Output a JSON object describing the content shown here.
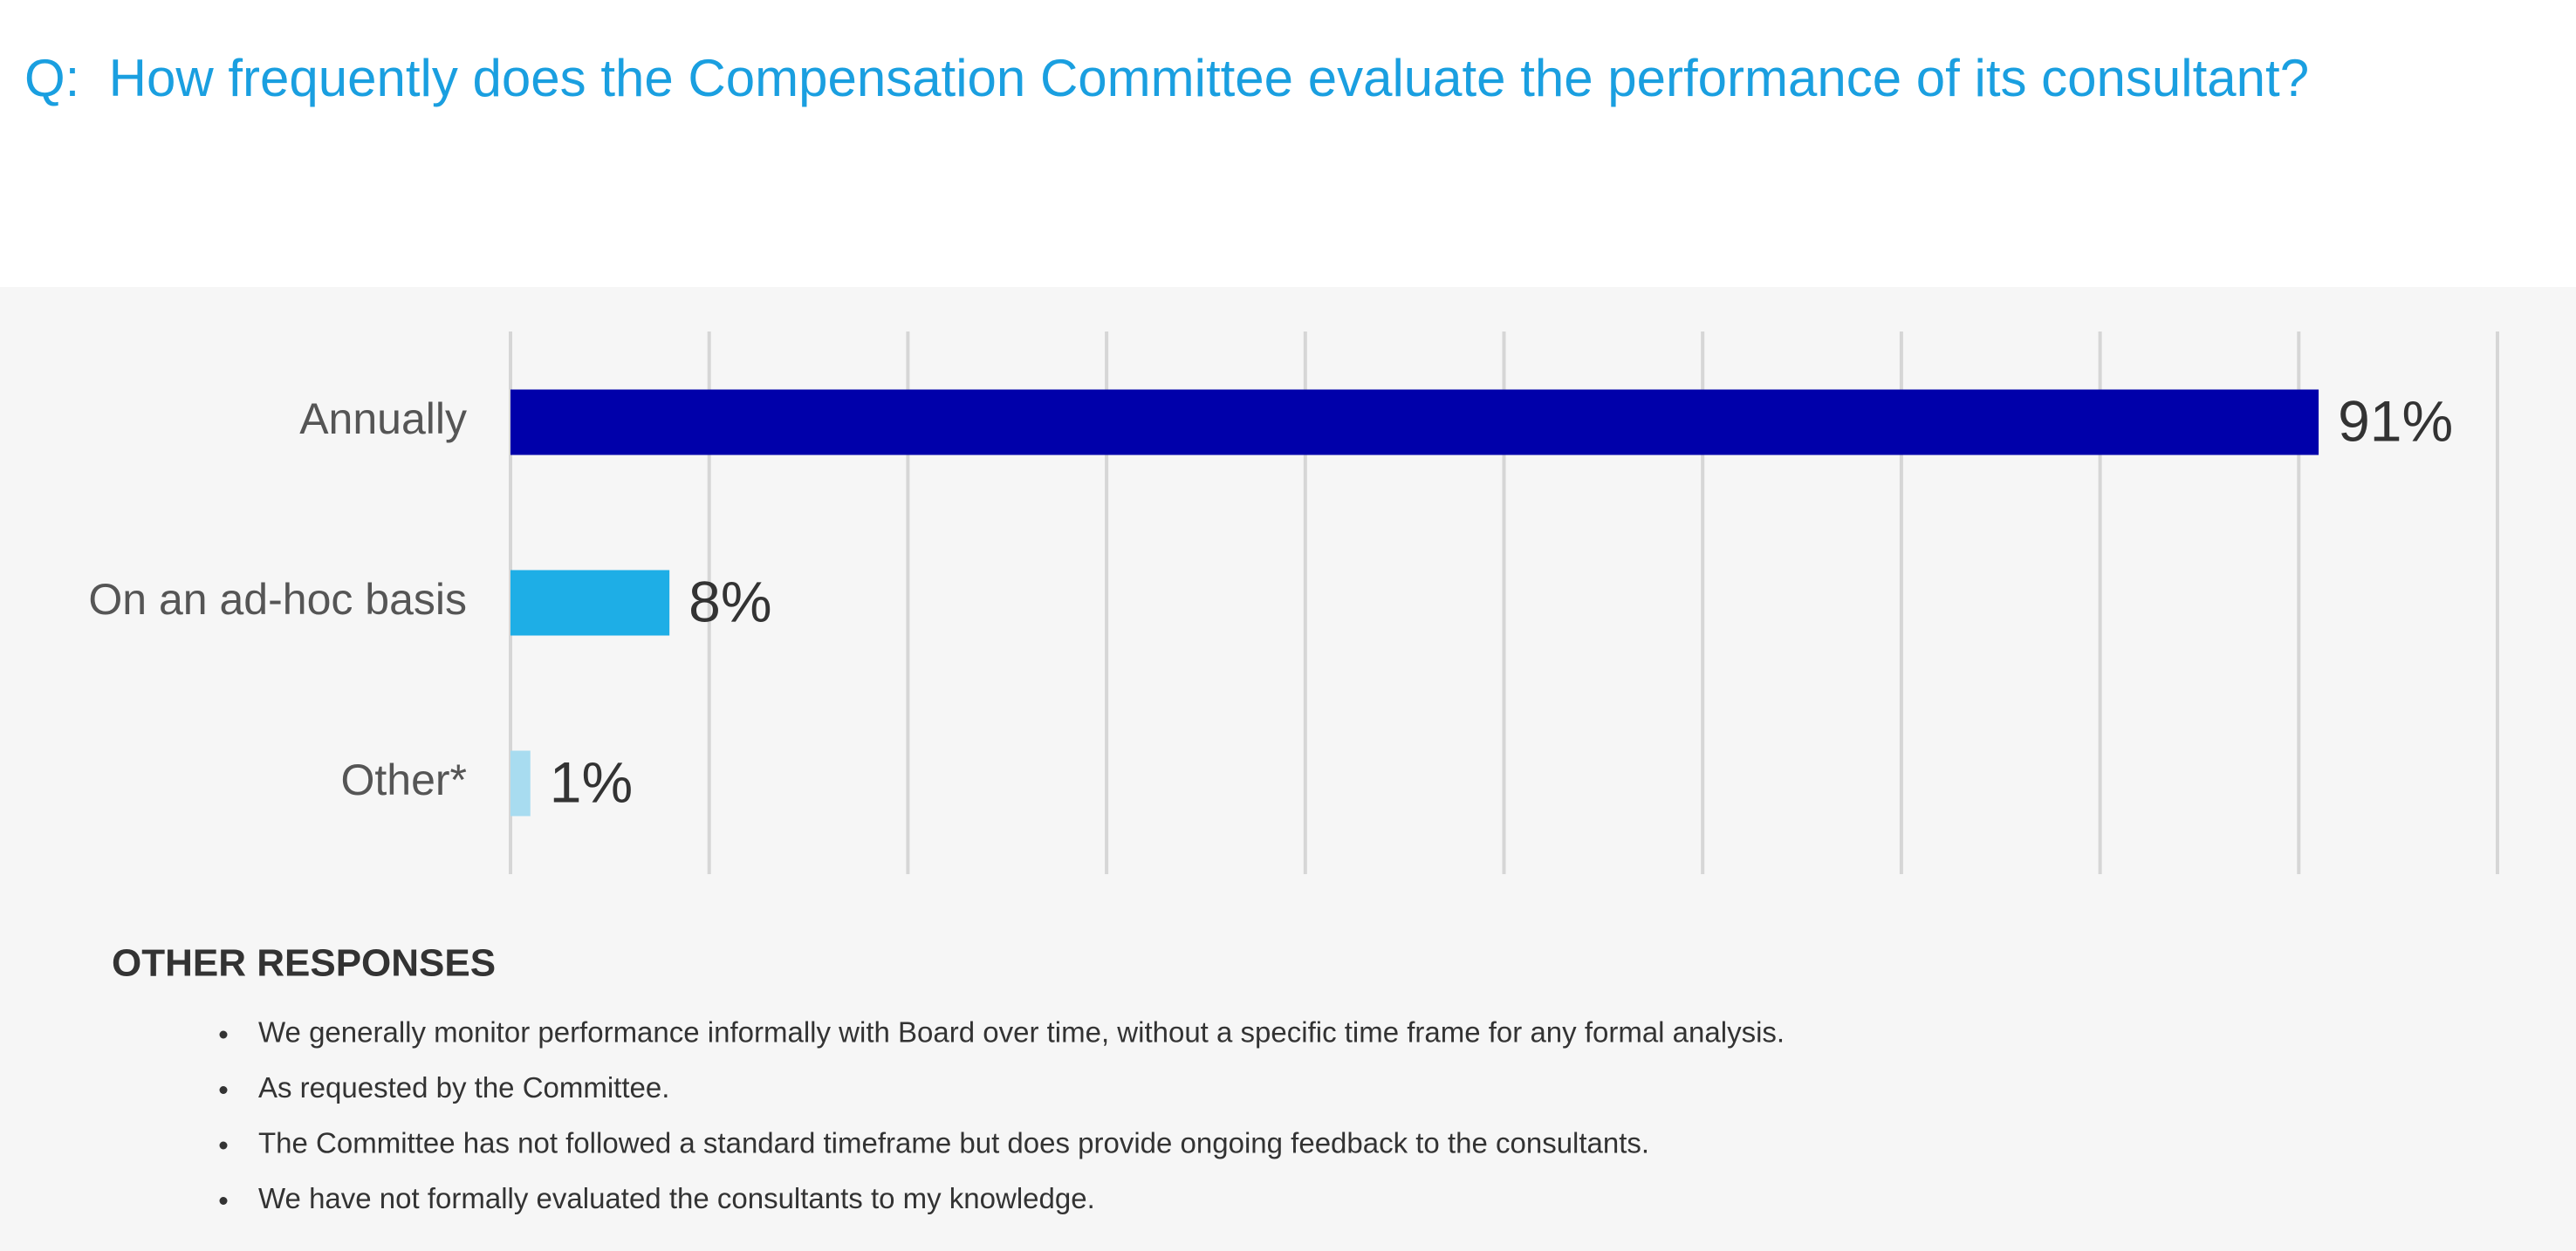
{
  "chart_data": {
    "type": "bar",
    "orientation": "horizontal",
    "title": "Q:  How frequently does the Compensation Committee evaluate the performance of its consultant?",
    "categories": [
      "Annually",
      "On an ad-hoc basis",
      "Other*"
    ],
    "values": [
      91,
      8,
      1
    ],
    "value_labels": [
      "91%",
      "8%",
      "1%"
    ],
    "colors": [
      "#0000aa",
      "#1eaee6",
      "#a8dcf0"
    ],
    "xlim": [
      0,
      100
    ],
    "xticks": [
      0,
      10,
      20,
      30,
      40,
      50,
      60,
      70,
      80,
      90,
      100
    ],
    "grid": true
  },
  "other_responses": {
    "heading": "OTHER RESPONSES",
    "items": [
      "We generally monitor performance informally with Board over time, without a specific time frame for any formal analysis.",
      "As requested by the Committee.",
      "The Committee has not followed a standard timeframe but does provide ongoing feedback to the consultants.",
      "We have not formally evaluated the consultants to my knowledge."
    ]
  }
}
